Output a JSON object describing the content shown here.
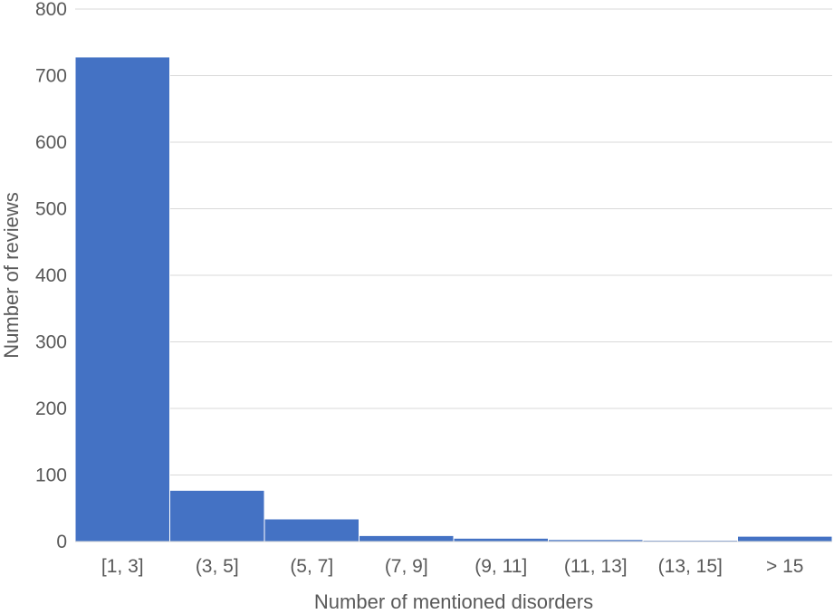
{
  "chart_data": {
    "type": "bar",
    "title": "",
    "xlabel": "Number of mentioned disorders",
    "ylabel": "Number of reviews",
    "categories": [
      "[1, 3]",
      "(3, 5]",
      "(5, 7]",
      "(7, 9]",
      "(9, 11]",
      "(11, 13]",
      "(13, 15]",
      "> 15"
    ],
    "values": [
      728,
      77,
      34,
      9,
      5,
      3,
      2,
      8
    ],
    "ylim": [
      0,
      800
    ],
    "yticks": [
      0,
      100,
      200,
      300,
      400,
      500,
      600,
      700,
      800
    ],
    "grid": true,
    "legend": "none",
    "bar_color": "#4472C4"
  }
}
